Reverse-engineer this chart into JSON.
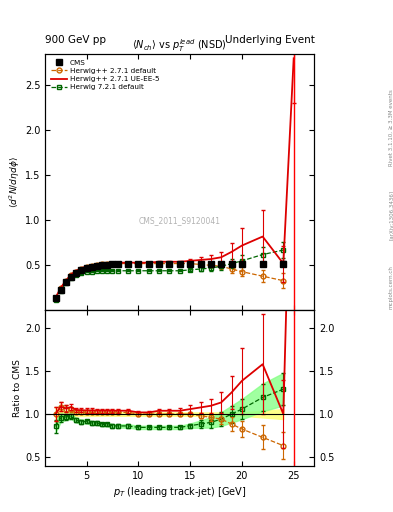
{
  "title_top": "900 GeV pp",
  "title_top_right": "Underlying Event",
  "plot_title": "$\\langle N_{ch}\\rangle$ vs $p_T^{lead}$ (NSD)",
  "xlabel": "$p_{T}$ (leading track-jet) [GeV]",
  "ylabel_main": "$\\langle d^{2}N/d\\eta d\\phi \\rangle$",
  "ylabel_ratio": "Ratio to CMS",
  "watermark": "CMS_2011_S9120041",
  "right_label1": "Rivet 3.1.10, ≥ 3.3M events",
  "right_label2": "[arXiv:1306.3436]",
  "right_label3": "mcplots.cern.ch",
  "cms_x": [
    2.0,
    2.5,
    3.0,
    3.5,
    4.0,
    4.5,
    5.0,
    5.5,
    6.0,
    6.5,
    7.0,
    7.5,
    8.0,
    9.0,
    10.0,
    11.0,
    12.0,
    13.0,
    14.0,
    15.0,
    16.0,
    17.0,
    18.0,
    19.0,
    20.0,
    22.0,
    24.0
  ],
  "cms_y": [
    0.14,
    0.23,
    0.31,
    0.37,
    0.42,
    0.45,
    0.47,
    0.48,
    0.49,
    0.5,
    0.5,
    0.51,
    0.51,
    0.51,
    0.52,
    0.52,
    0.52,
    0.52,
    0.52,
    0.52,
    0.52,
    0.52,
    0.52,
    0.52,
    0.52,
    0.52,
    0.52
  ],
  "cms_yerr": [
    0.01,
    0.01,
    0.01,
    0.01,
    0.01,
    0.01,
    0.01,
    0.01,
    0.01,
    0.01,
    0.01,
    0.01,
    0.01,
    0.01,
    0.01,
    0.01,
    0.01,
    0.01,
    0.01,
    0.01,
    0.01,
    0.01,
    0.01,
    0.01,
    0.01,
    0.02,
    0.03
  ],
  "hw271d_x": [
    2.0,
    2.5,
    3.0,
    3.5,
    4.0,
    4.5,
    5.0,
    5.5,
    6.0,
    6.5,
    7.0,
    7.5,
    8.0,
    9.0,
    10.0,
    11.0,
    12.0,
    13.0,
    14.0,
    15.0,
    16.0,
    17.0,
    18.0,
    19.0,
    20.0,
    22.0,
    24.0
  ],
  "hw271d_y": [
    0.14,
    0.25,
    0.33,
    0.39,
    0.43,
    0.46,
    0.48,
    0.49,
    0.5,
    0.51,
    0.51,
    0.52,
    0.52,
    0.52,
    0.52,
    0.52,
    0.52,
    0.52,
    0.52,
    0.52,
    0.51,
    0.5,
    0.49,
    0.46,
    0.43,
    0.38,
    0.33
  ],
  "hw271d_yerr": [
    0.005,
    0.005,
    0.005,
    0.005,
    0.005,
    0.005,
    0.005,
    0.005,
    0.005,
    0.005,
    0.005,
    0.005,
    0.005,
    0.005,
    0.005,
    0.005,
    0.005,
    0.005,
    0.005,
    0.01,
    0.01,
    0.02,
    0.03,
    0.04,
    0.05,
    0.07,
    0.08
  ],
  "hw271ue_x": [
    2.0,
    2.5,
    3.0,
    3.5,
    4.0,
    4.5,
    5.0,
    5.5,
    6.0,
    6.5,
    7.0,
    7.5,
    8.0,
    9.0,
    10.0,
    11.0,
    12.0,
    13.0,
    14.0,
    15.0,
    16.0,
    17.0,
    18.0,
    19.0,
    20.0,
    22.0,
    24.0,
    25.0
  ],
  "hw271ue_y": [
    0.14,
    0.25,
    0.33,
    0.4,
    0.44,
    0.47,
    0.49,
    0.5,
    0.51,
    0.52,
    0.52,
    0.53,
    0.53,
    0.53,
    0.53,
    0.53,
    0.54,
    0.54,
    0.54,
    0.55,
    0.56,
    0.57,
    0.59,
    0.65,
    0.72,
    0.82,
    0.52,
    2.8
  ],
  "hw271ue_yerr": [
    0.005,
    0.005,
    0.005,
    0.005,
    0.005,
    0.005,
    0.005,
    0.005,
    0.005,
    0.005,
    0.005,
    0.005,
    0.005,
    0.005,
    0.005,
    0.005,
    0.005,
    0.005,
    0.01,
    0.02,
    0.03,
    0.04,
    0.06,
    0.1,
    0.2,
    0.3,
    0.2,
    0.5
  ],
  "hw721d_x": [
    2.0,
    2.5,
    3.0,
    3.5,
    4.0,
    4.5,
    5.0,
    5.5,
    6.0,
    6.5,
    7.0,
    7.5,
    8.0,
    9.0,
    10.0,
    11.0,
    12.0,
    13.0,
    14.0,
    15.0,
    16.0,
    17.0,
    18.0,
    19.0,
    20.0,
    22.0,
    24.0
  ],
  "hw721d_y": [
    0.12,
    0.22,
    0.3,
    0.36,
    0.39,
    0.41,
    0.43,
    0.43,
    0.44,
    0.44,
    0.44,
    0.44,
    0.44,
    0.44,
    0.44,
    0.44,
    0.44,
    0.44,
    0.44,
    0.45,
    0.46,
    0.47,
    0.49,
    0.52,
    0.55,
    0.62,
    0.67
  ],
  "hw721d_yerr": [
    0.005,
    0.005,
    0.005,
    0.005,
    0.005,
    0.005,
    0.005,
    0.005,
    0.005,
    0.005,
    0.005,
    0.005,
    0.005,
    0.005,
    0.005,
    0.005,
    0.005,
    0.005,
    0.005,
    0.01,
    0.02,
    0.03,
    0.04,
    0.05,
    0.06,
    0.08,
    0.09
  ],
  "vline_x": 25.0,
  "cms_color": "#000000",
  "hw271d_color": "#cc6600",
  "hw271ue_color": "#dd0000",
  "hw721d_color": "#006600",
  "band_yellow": "#ffff88",
  "band_green": "#88ff88",
  "xlim": [
    1,
    27
  ],
  "ylim_main": [
    0.0,
    2.85
  ],
  "ylim_ratio": [
    0.4,
    2.2
  ],
  "main_yticks": [
    0.5,
    1.0,
    1.5,
    2.0,
    2.5
  ],
  "ratio_yticks": [
    0.5,
    1.0,
    1.5,
    2.0
  ],
  "xticks": [
    5,
    10,
    15,
    20,
    25
  ]
}
